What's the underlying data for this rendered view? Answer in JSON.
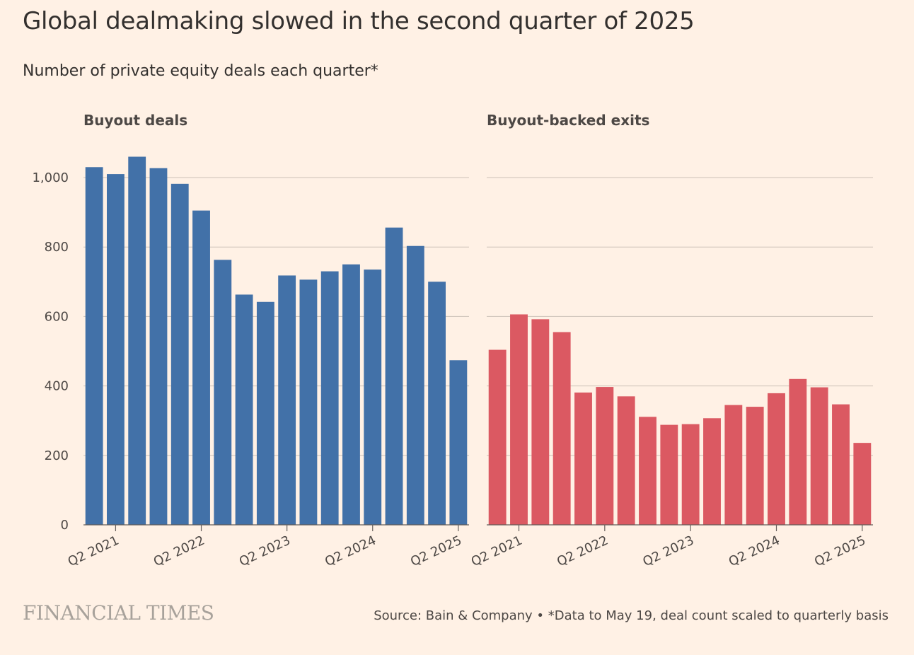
{
  "title": "Global dealmaking slowed in the second quarter of 2025",
  "subtitle": "Number of private equity deals each quarter*",
  "logo": "FINANCIAL TIMES",
  "source": "Source: Bain & Company • *Data to May 19, deal count scaled to quarterly basis",
  "colors": {
    "buyout": "#4271a8",
    "exits": "#db5962",
    "background": "#fff1e5"
  },
  "chart_data": [
    {
      "type": "bar",
      "title": "Buyout deals",
      "color": "#4271a8",
      "categories": [
        "Q1 2021",
        "Q2 2021",
        "Q3 2021",
        "Q4 2021",
        "Q1 2022",
        "Q2 2022",
        "Q3 2022",
        "Q4 2022",
        "Q1 2023",
        "Q2 2023",
        "Q3 2023",
        "Q4 2023",
        "Q1 2024",
        "Q2 2024",
        "Q3 2024",
        "Q4 2024",
        "Q1 2025",
        "Q2 2025"
      ],
      "values": [
        1030,
        1010,
        1060,
        1027,
        982,
        905,
        763,
        663,
        642,
        718,
        706,
        730,
        750,
        735,
        856,
        803,
        700,
        474
      ],
      "ylim": [
        0,
        1000
      ],
      "yticks": [
        0,
        200,
        400,
        600,
        800,
        1000
      ],
      "ytick_labels": [
        "0",
        "200",
        "400",
        "600",
        "800",
        "1,000"
      ],
      "xtick_labels": [
        "Q2 2021",
        "Q2 2022",
        "Q2 2023",
        "Q2 2024",
        "Q2 2025"
      ],
      "xtick_categories": [
        "Q2 2021",
        "Q2 2022",
        "Q2 2023",
        "Q2 2024",
        "Q2 2025"
      ],
      "grid": true
    },
    {
      "type": "bar",
      "title": "Buyout-backed exits",
      "color": "#db5962",
      "categories": [
        "Q1 2021",
        "Q2 2021",
        "Q3 2021",
        "Q4 2021",
        "Q1 2022",
        "Q2 2022",
        "Q3 2022",
        "Q4 2022",
        "Q1 2023",
        "Q2 2023",
        "Q3 2023",
        "Q4 2023",
        "Q1 2024",
        "Q2 2024",
        "Q3 2024",
        "Q4 2024",
        "Q1 2025",
        "Q2 2025"
      ],
      "values": [
        504,
        606,
        592,
        555,
        381,
        397,
        370,
        311,
        288,
        290,
        307,
        345,
        340,
        379,
        420,
        396,
        347,
        236
      ],
      "ylim": [
        0,
        1000
      ],
      "yticks": [
        0,
        200,
        400,
        600,
        800,
        1000
      ],
      "xtick_labels": [
        "Q2 2021",
        "Q2 2022",
        "Q2 2023",
        "Q2 2024",
        "Q2 2025"
      ],
      "xtick_categories": [
        "Q2 2021",
        "Q2 2022",
        "Q2 2023",
        "Q2 2024",
        "Q2 2025"
      ],
      "grid": true
    }
  ]
}
